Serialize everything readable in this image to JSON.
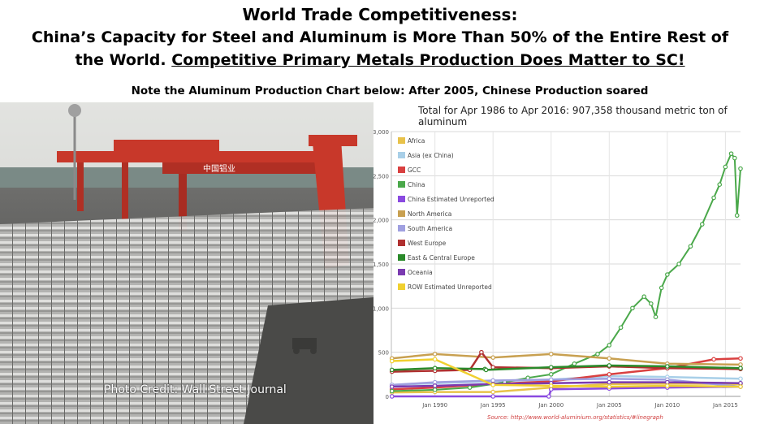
{
  "header": {
    "line1": "World Trade Competitiveness:",
    "line2": "China’s Capacity for Steel and Aluminum is More Than 50% of the Entire Rest of",
    "line3_plain": "the World. ",
    "line3_underlined": "Competitive Primary Metals Production Does Matter to SC!",
    "note": "Note the Aluminum Production Chart below: After 2005, Chinese Production soared"
  },
  "photo": {
    "credit": "Photo Credit: Wall Street Journal",
    "crane_sign": "中国铝业",
    "colors": {
      "crane": "#c8382a",
      "sky": "#d9d9d6",
      "ingot": "#bfbfbf"
    }
  },
  "chart_data": {
    "type": "line",
    "title": "Total for Apr 1986 to Apr 2016: 907,358  thousand metric ton of aluminum",
    "source": "Source: http://www.world-aluminium.org/statistics/#linegraph",
    "ylim": [
      0,
      3000
    ],
    "yticks": [
      "0",
      "500",
      "1,000",
      "1,500",
      "2,000",
      "2,500",
      "3,000"
    ],
    "xlim": [
      1986.25,
      2016.3
    ],
    "xticks": [
      {
        "label": "Jan 1990",
        "x": 1990.0
      },
      {
        "label": "Jan 1995",
        "x": 1995.0
      },
      {
        "label": "Jan 2000",
        "x": 2000.0
      },
      {
        "label": "Jan 2005",
        "x": 2005.0
      },
      {
        "label": "Jan 2010",
        "x": 2010.0
      },
      {
        "label": "Jan 2015",
        "x": 2015.0
      }
    ],
    "grid": true,
    "legend_position": "top-left",
    "series": [
      {
        "name": "Africa",
        "color": "#e8c24a",
        "x": [
          1986.3,
          1990,
          1995,
          2000,
          2005,
          2010,
          2016.3
        ],
        "values": [
          45,
          50,
          50,
          100,
          140,
          145,
          140
        ]
      },
      {
        "name": "Asia (ex China)",
        "color": "#a8cfe8",
        "x": [
          1986.3,
          1990,
          1995,
          2000,
          2005,
          2010,
          2016.3
        ],
        "values": [
          130,
          150,
          170,
          190,
          230,
          220,
          200
        ]
      },
      {
        "name": "GCC",
        "color": "#d94040",
        "x": [
          1986.3,
          1990,
          1995,
          2000,
          2005,
          2010,
          2014,
          2016.3
        ],
        "values": [
          80,
          100,
          140,
          170,
          250,
          320,
          420,
          430
        ]
      },
      {
        "name": "China",
        "color": "#4aa84a",
        "x": [
          1986.3,
          1990,
          1993,
          1996,
          1998,
          2000,
          2002,
          2004,
          2005,
          2006,
          2007,
          2008,
          2008.6,
          2009,
          2009.5,
          2010,
          2011,
          2012,
          2013,
          2014,
          2014.5,
          2015,
          2015.5,
          2015.8,
          2016,
          2016.3
        ],
        "values": [
          60,
          75,
          100,
          160,
          210,
          250,
          370,
          480,
          580,
          780,
          1000,
          1130,
          1050,
          900,
          1230,
          1380,
          1500,
          1700,
          1950,
          2250,
          2400,
          2600,
          2750,
          2700,
          2050,
          2580
        ]
      },
      {
        "name": "China Estimated Unreported",
        "color": "#8a4ae0",
        "x": [
          1986.3,
          1995,
          1999.8,
          2000,
          2005,
          2010,
          2016.3
        ],
        "values": [
          0,
          0,
          0,
          80,
          90,
          100,
          110
        ]
      },
      {
        "name": "North America",
        "color": "#c8a050",
        "x": [
          1986.3,
          1990,
          1995,
          2000,
          2005,
          2010,
          2016.3
        ],
        "values": [
          430,
          480,
          440,
          480,
          430,
          370,
          360
        ]
      },
      {
        "name": "South America",
        "color": "#a0a0e0",
        "x": [
          1986.3,
          1990,
          1995,
          2000,
          2005,
          2010,
          2016.3
        ],
        "values": [
          130,
          160,
          180,
          190,
          200,
          190,
          110
        ]
      },
      {
        "name": "West Europe",
        "color": "#b03030",
        "x": [
          1986.3,
          1990,
          1993,
          1994,
          1995,
          2000,
          2005,
          2010,
          2016.3
        ],
        "values": [
          280,
          290,
          300,
          500,
          330,
          320,
          340,
          320,
          310
        ]
      },
      {
        "name": "East & Central Europe",
        "color": "#2a8a2a",
        "x": [
          1986.3,
          1990,
          1994.3,
          1994.4,
          2000,
          2005,
          2010,
          2016.3
        ],
        "values": [
          300,
          320,
          310,
          300,
          330,
          350,
          340,
          320
        ]
      },
      {
        "name": "Oceania",
        "color": "#7a3ab0",
        "x": [
          1986.3,
          1990,
          1995,
          2000,
          2005,
          2010,
          2016.3
        ],
        "values": [
          110,
          120,
          140,
          150,
          160,
          160,
          150
        ]
      },
      {
        "name": "ROW Estimated Unreported",
        "color": "#f0d030",
        "x": [
          1986.3,
          1990,
          1995,
          2000,
          2005,
          2010,
          2016.3
        ],
        "values": [
          400,
          420,
          130,
          120,
          110,
          120,
          110
        ]
      }
    ]
  }
}
